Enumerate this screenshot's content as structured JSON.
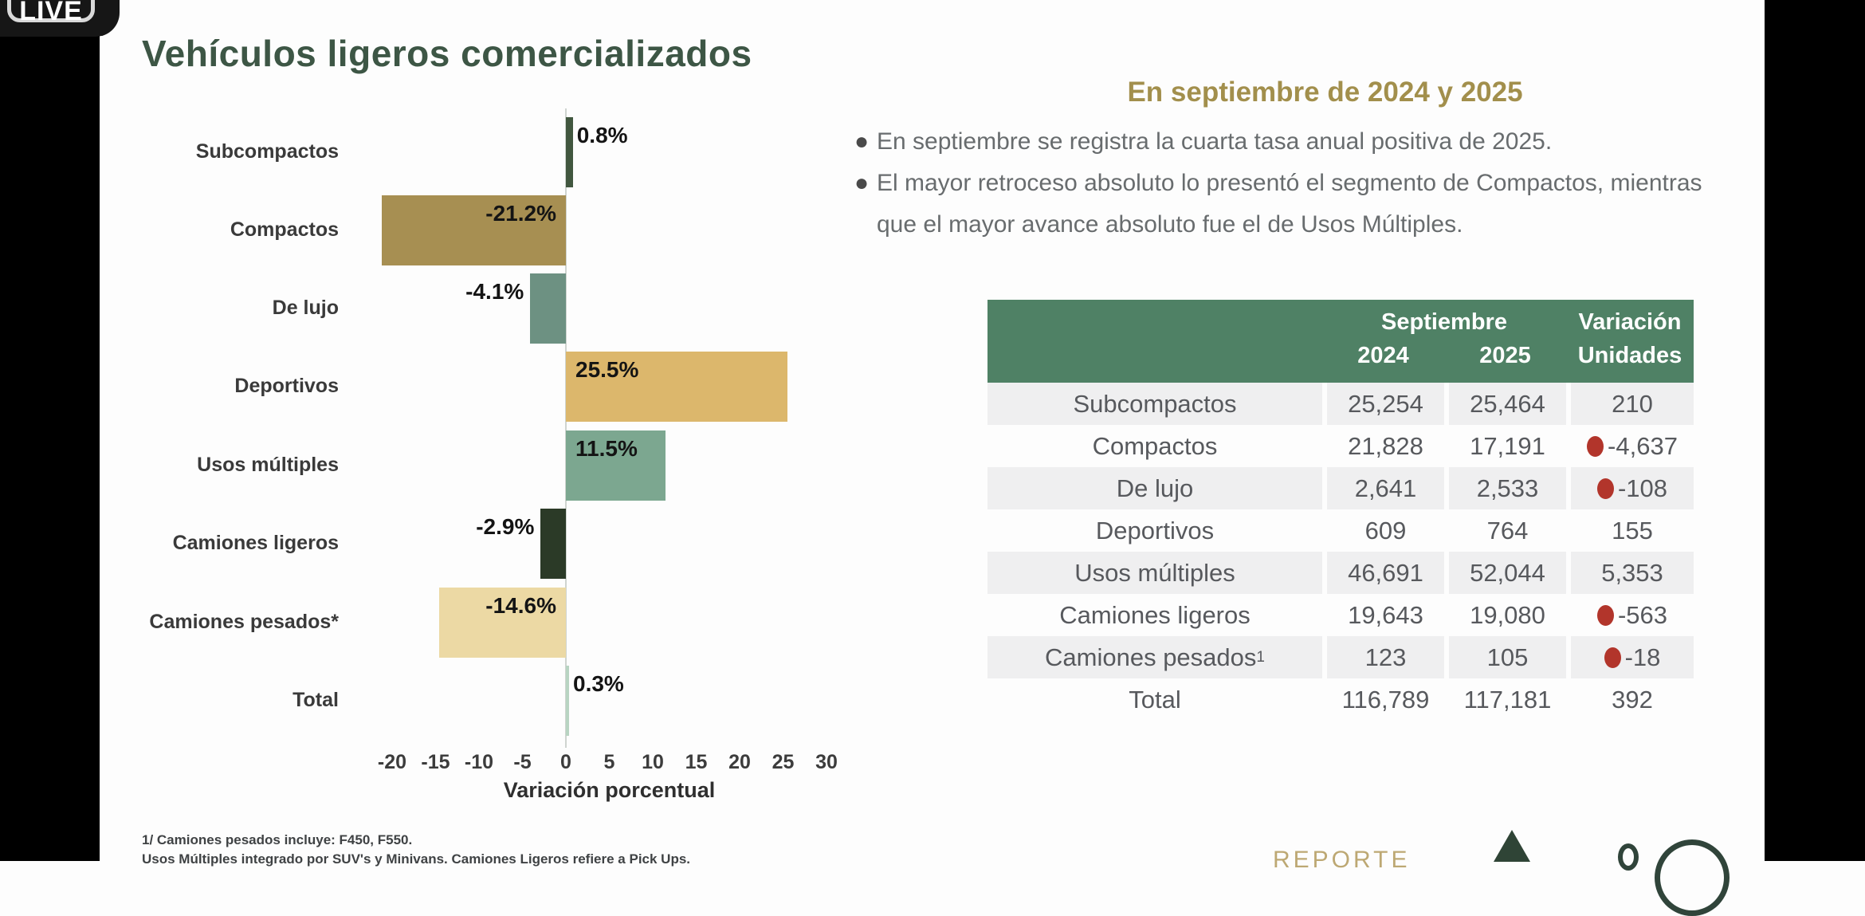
{
  "live_badge": {
    "label": "LIVE"
  },
  "page": {
    "title": "Vehículos ligeros comercializados"
  },
  "right_panel": {
    "heading": "En septiembre de 2024 y 2025",
    "bullets": [
      "En septiembre se registra la cuarta tasa anual positiva de 2025.",
      "El mayor retroceso absoluto lo presentó el segmento de Compactos, mientras que el mayor avance absoluto fue el de Usos Múltiples."
    ]
  },
  "chart_data": {
    "type": "bar",
    "orientation": "horizontal",
    "categories": [
      "Subcompactos",
      "Compactos",
      "De lujo",
      "Deportivos",
      "Usos múltiples",
      "Camiones ligeros",
      "Camiones pesados*",
      "Total"
    ],
    "values": [
      0.8,
      -21.2,
      -4.1,
      25.5,
      11.5,
      -2.9,
      -14.6,
      0.3
    ],
    "value_labels": [
      "0.8%",
      "-21.2%",
      "-4.1%",
      "25.5%",
      "11.5%",
      "-2.9%",
      "-14.6%",
      "0.3%"
    ],
    "bar_colors": [
      "#41573f",
      "#a78f52",
      "#6d9182",
      "#dcb76c",
      "#7ca790",
      "#2b3a27",
      "#ecd9a4",
      "#b8d4c2"
    ],
    "xlabel": "Variación porcentual",
    "x_ticks": [
      -20,
      -15,
      -10,
      -5,
      0,
      5,
      10,
      15,
      20,
      25,
      30
    ],
    "xlim": [
      -25,
      33
    ],
    "grid": false,
    "legend": "none"
  },
  "table": {
    "header": {
      "group_label": "Septiembre",
      "col_2024": "2024",
      "col_2025": "2025",
      "variation_line1": "Variación",
      "variation_line2": "Unidades"
    },
    "header_bg": "#4f8165",
    "stripe_bg": "#efeff0",
    "negative_dot_color": "#b2352b",
    "rows": [
      {
        "category": "Subcompactos",
        "category_sup": "",
        "y2024": "25,254",
        "y2025": "25,464",
        "variation": "210",
        "negative": false
      },
      {
        "category": "Compactos",
        "category_sup": "",
        "y2024": "21,828",
        "y2025": "17,191",
        "variation": "-4,637",
        "negative": true
      },
      {
        "category": "De lujo",
        "category_sup": "",
        "y2024": "2,641",
        "y2025": "2,533",
        "variation": "-108",
        "negative": true
      },
      {
        "category": "Deportivos",
        "category_sup": "",
        "y2024": "609",
        "y2025": "764",
        "variation": "155",
        "negative": false
      },
      {
        "category": "Usos múltiples",
        "category_sup": "",
        "y2024": "46,691",
        "y2025": "52,044",
        "variation": "5,353",
        "negative": false
      },
      {
        "category": "Camiones ligeros",
        "category_sup": "",
        "y2024": "19,643",
        "y2025": "19,080",
        "variation": "-563",
        "negative": true
      },
      {
        "category": "Camiones pesados",
        "category_sup": "1",
        "y2024": "123",
        "y2025": "105",
        "variation": "-18",
        "negative": true
      },
      {
        "category": "Total",
        "category_sup": "",
        "y2024": "116,789",
        "y2025": "117,181",
        "variation": "392",
        "negative": false
      }
    ]
  },
  "footnotes": [
    "1/ Camiones pesados incluye: F450, F550.",
    "Usos Múltiples integrado por SUV's y Minivans. Camiones Ligeros refiere a Pick Ups."
  ],
  "footer": {
    "reporte_label": "REPORTE"
  },
  "colors": {
    "title_green": "#3d5645",
    "heading_gold": "#a28f4c",
    "table_header_green": "#4f8165",
    "negative_red": "#b2352b",
    "footer_gold": "#bda873",
    "letterbox_black": "#000000"
  }
}
